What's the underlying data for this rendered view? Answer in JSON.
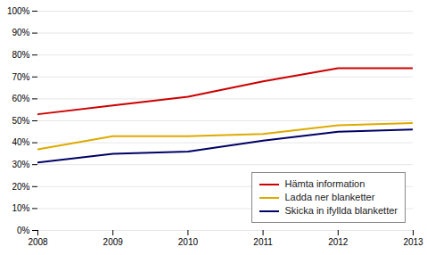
{
  "chart_data": {
    "type": "line",
    "x": [
      2008,
      2009,
      2010,
      2011,
      2012,
      2013
    ],
    "series": [
      {
        "name": "Hämta information",
        "color": "#cc0000",
        "values": [
          0.53,
          0.57,
          0.61,
          0.68,
          0.74,
          0.74
        ]
      },
      {
        "name": "Ladda ner blanketter",
        "color": "#ddaa00",
        "values": [
          0.37,
          0.43,
          0.43,
          0.44,
          0.48,
          0.49
        ]
      },
      {
        "name": "Skicka in ifyllda blanketter",
        "color": "#000066",
        "values": [
          0.31,
          0.35,
          0.36,
          0.41,
          0.45,
          0.46
        ]
      }
    ],
    "xlim": [
      2008,
      2013
    ],
    "xticks": [
      2008,
      2009,
      2010,
      2011,
      2012,
      2013
    ],
    "ylim": [
      0.0,
      1.0
    ],
    "yticks": [
      {
        "value": 0.0,
        "label": "0%"
      },
      {
        "value": 0.1,
        "label": "10%"
      },
      {
        "value": 0.2,
        "label": "20%"
      },
      {
        "value": 0.3,
        "label": "30%"
      },
      {
        "value": 0.4,
        "label": "40%"
      },
      {
        "value": 0.5,
        "label": "50%"
      },
      {
        "value": 0.6,
        "label": "60%"
      },
      {
        "value": 0.7,
        "label": "70%"
      },
      {
        "value": 0.8,
        "label": "80%"
      },
      {
        "value": 0.9,
        "label": "90%"
      },
      {
        "value": 1.0,
        "label": "100%"
      }
    ],
    "grid": true,
    "legend": "lower right"
  }
}
